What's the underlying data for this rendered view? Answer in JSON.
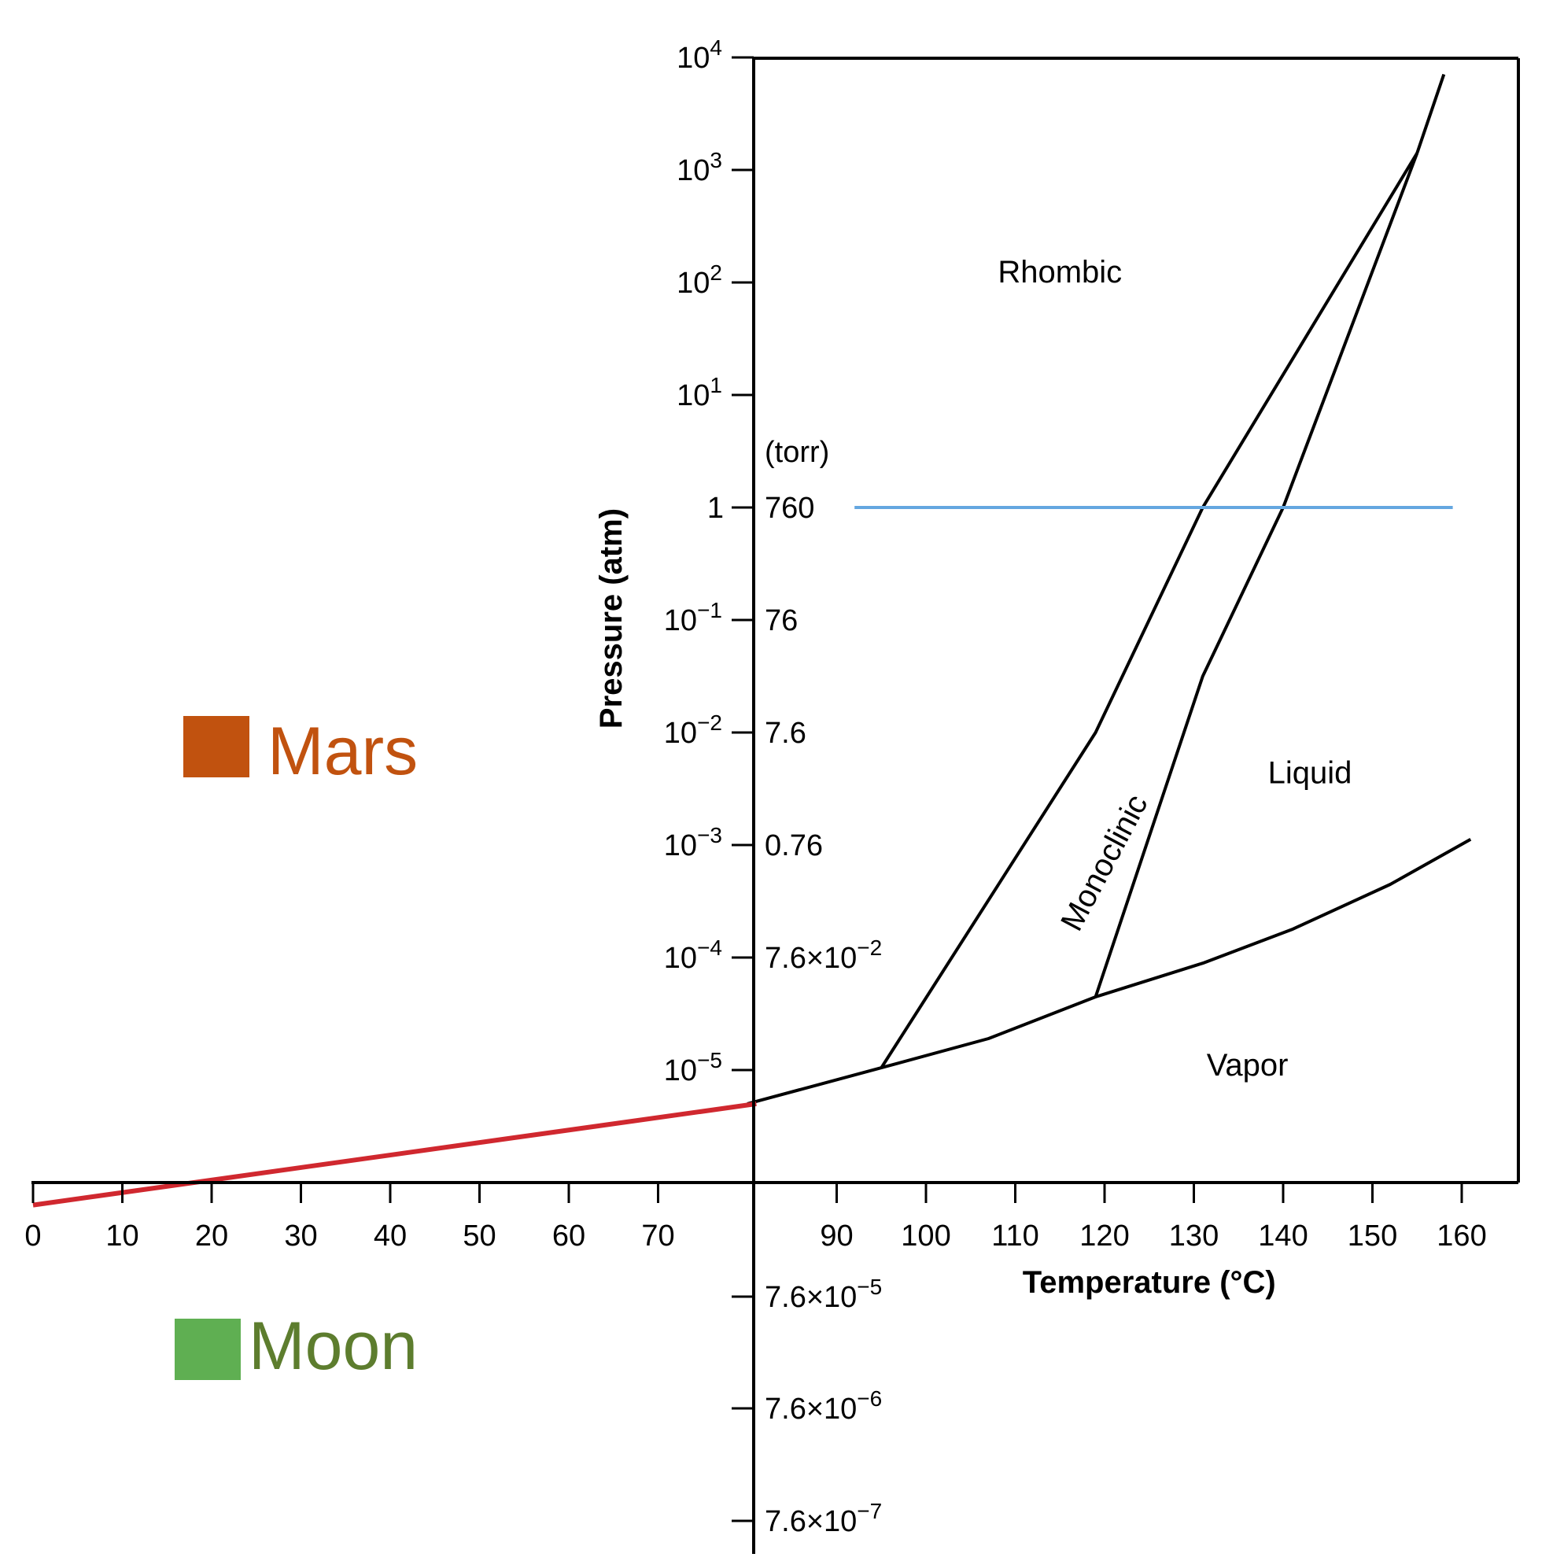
{
  "chart_data": {
    "type": "line",
    "title": "",
    "xlabel": "Temperature (°C)",
    "ylabel": "Pressure (atm)",
    "x_ticks_left": [
      "0",
      "10",
      "20",
      "30",
      "40",
      "50",
      "60",
      "70"
    ],
    "x_ticks_right": [
      "90",
      "100",
      "110",
      "120",
      "130",
      "140",
      "150",
      "160"
    ],
    "y_ticks_atm": [
      {
        "base": "10",
        "exp": "4",
        "log": 4
      },
      {
        "base": "10",
        "exp": "3",
        "log": 3
      },
      {
        "base": "10",
        "exp": "2",
        "log": 2
      },
      {
        "base": "10",
        "exp": "1",
        "log": 1
      },
      {
        "base": "1",
        "exp": "",
        "log": 0
      },
      {
        "base": "10",
        "exp": "−1",
        "log": -1
      },
      {
        "base": "10",
        "exp": "−2",
        "log": -2
      },
      {
        "base": "10",
        "exp": "−3",
        "log": -3
      },
      {
        "base": "10",
        "exp": "−4",
        "log": -4
      },
      {
        "base": "10",
        "exp": "−5",
        "log": -5
      }
    ],
    "torr_unit": "(torr)",
    "y_ticks_torr": [
      {
        "base": "760",
        "exp": "",
        "log": 0
      },
      {
        "base": "76",
        "exp": "",
        "log": -1
      },
      {
        "base": "7.6",
        "exp": "",
        "log": -2
      },
      {
        "base": "0.76",
        "exp": "",
        "log": -3
      },
      {
        "base": "7.6×10",
        "exp": "−2",
        "log": -4
      }
    ],
    "y_ticks_torr_lower": [
      {
        "base": "7.6×10",
        "exp": "−5",
        "log": -7
      },
      {
        "base": "7.6×10",
        "exp": "−6",
        "log": -8
      },
      {
        "base": "7.6×10",
        "exp": "−7",
        "log": -9
      }
    ],
    "log_scale": true,
    "regions": [
      {
        "label": "Rhombic",
        "x": 115,
        "log_p": 2.0
      },
      {
        "label": "Monoclinic",
        "x": 121,
        "log_p": -3.2
      },
      {
        "label": "Liquid",
        "x": 143,
        "log_p": -2.45
      },
      {
        "label": "Vapor",
        "x": 136,
        "log_p": -5.05
      }
    ],
    "series": [
      {
        "key": "vapor_curve",
        "color": "#000000",
        "points": [
          [
            80,
            -5.3
          ],
          [
            95,
            -4.98
          ],
          [
            107,
            -4.72
          ],
          [
            119,
            -4.35
          ],
          [
            131,
            -4.05
          ],
          [
            141,
            -3.75
          ],
          [
            152,
            -3.35
          ],
          [
            161,
            -2.95
          ]
        ]
      },
      {
        "key": "rhombic_monoclinic",
        "color": "#000000",
        "points": [
          [
            95,
            -4.98
          ],
          [
            119,
            -2.0
          ],
          [
            131,
            0.0
          ],
          [
            155,
            3.15
          ]
        ]
      },
      {
        "key": "monoclinic_liquid",
        "color": "#000000",
        "points": [
          [
            119,
            -4.35
          ],
          [
            131,
            -1.5
          ],
          [
            140,
            0.0
          ],
          [
            155,
            3.15
          ]
        ]
      },
      {
        "key": "rhombic_liquid",
        "color": "#000000",
        "points": [
          [
            155,
            3.15
          ],
          [
            158,
            3.85
          ]
        ]
      },
      {
        "key": "one_atm_line",
        "color": "#64a7e0",
        "points": [
          [
            92,
            0.0
          ],
          [
            159,
            0.0
          ]
        ]
      },
      {
        "key": "extrapolation",
        "color": "#d0282f",
        "points": [
          [
            0,
            -6.2
          ],
          [
            81,
            -5.3
          ]
        ]
      }
    ],
    "legend": [
      {
        "label": "Mars",
        "color": "#c1520f"
      },
      {
        "label": "Moon",
        "color": "#5faf52"
      }
    ],
    "colors": {
      "axis": "#000000",
      "mars_text": "#c1520f",
      "moon_text": "#5d7d2e"
    }
  }
}
